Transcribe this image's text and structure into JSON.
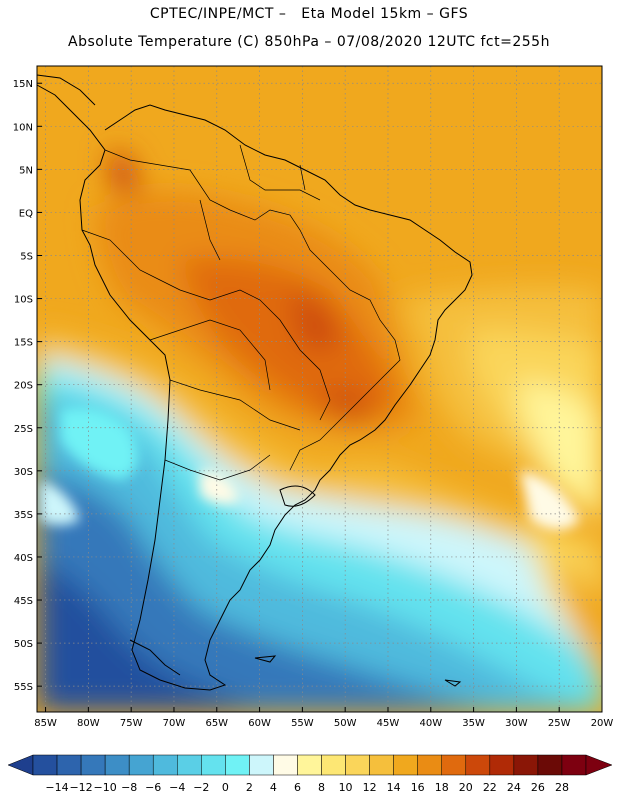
{
  "header": {
    "line1": "CPTEC/INPE/MCT –   Eta Model 15km – GFS",
    "line2": "Absolute Temperature (C) 850hPa – 07/08/2020 12UTC fct=255h"
  },
  "map": {
    "lat_ticks": [
      "15N",
      "10N",
      "5N",
      "EQ",
      "5S",
      "10S",
      "15S",
      "20S",
      "25S",
      "30S",
      "35S",
      "40S",
      "45S",
      "50S",
      "55S"
    ],
    "lat_values": [
      15,
      10,
      5,
      0,
      -5,
      -10,
      -15,
      -20,
      -25,
      -30,
      -35,
      -40,
      -45,
      -50,
      -55
    ],
    "lon_ticks": [
      "85W",
      "80W",
      "75W",
      "70W",
      "65W",
      "60W",
      "55W",
      "50W",
      "45W",
      "40W",
      "35W",
      "30W",
      "25W",
      "20W"
    ],
    "lon_values": [
      -85,
      -80,
      -75,
      -70,
      -65,
      -60,
      -55,
      -50,
      -45,
      -40,
      -35,
      -30,
      -25,
      -20
    ],
    "lat_range": [
      -58,
      17
    ],
    "lon_range": [
      -86,
      -20
    ],
    "grid": true
  },
  "colorbar": {
    "labels": [
      "-14",
      "-12",
      "-10",
      "-8",
      "-6",
      "-4",
      "-2",
      "0",
      "2",
      "4",
      "6",
      "8",
      "10",
      "12",
      "14",
      "16",
      "18",
      "20",
      "22",
      "24",
      "26",
      "28"
    ],
    "colors": [
      "#1e3f8e",
      "#24509e",
      "#2d64ad",
      "#3578ba",
      "#3d8ec6",
      "#45a4d2",
      "#4fbadd",
      "#5acfe6",
      "#64e2ee",
      "#70f2f5",
      "#cdf6fb",
      "#fffbe6",
      "#fff59a",
      "#fde774",
      "#fad55a",
      "#f5bf3c",
      "#f0a81e",
      "#ea8c14",
      "#e06a0e",
      "#cc480a",
      "#b02a06",
      "#8a1606",
      "#6b0a06",
      "#7d0010"
    ]
  }
}
